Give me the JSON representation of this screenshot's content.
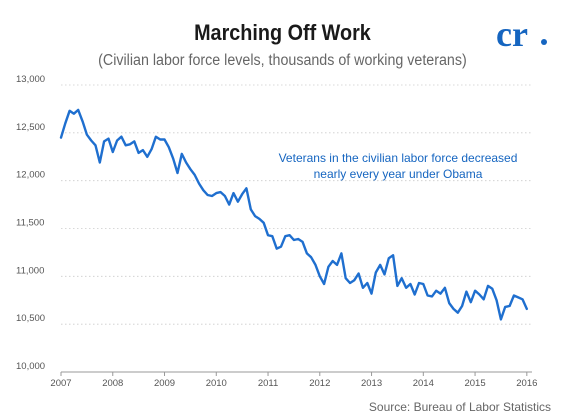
{
  "title": "Marching Off Work",
  "subtitle": "(Civilian labor force levels, thousands of working veterans)",
  "source": "Source: Bureau of Labor Statistics",
  "logo": {
    "text": "cr",
    "color": "#1565c0",
    "icon": "cr-logo"
  },
  "colors": {
    "line": "#1f6fcf",
    "annotation": "#1565c0",
    "grid": "#cccccc"
  },
  "chart_data": {
    "type": "line",
    "title": "Marching Off Work",
    "subtitle": "(Civilian labor force levels, thousands of working veterans)",
    "xlabel": "",
    "ylabel": "",
    "xlim": [
      2007,
      2016.1
    ],
    "ylim": [
      10000,
      13000
    ],
    "x_ticks": [
      2007,
      2008,
      2009,
      2010,
      2011,
      2012,
      2013,
      2014,
      2015,
      2016
    ],
    "y_ticks": [
      10000,
      10500,
      11000,
      11500,
      12000,
      12500,
      13000
    ],
    "y_tick_labels": [
      "10,000",
      "10,500",
      "11,000",
      "11,500",
      "12,000",
      "12,500",
      "13,000"
    ],
    "grid": "horizontal",
    "annotation": [
      "Veterans in the civilian labor force decreased",
      "nearly every year under Obama"
    ],
    "series": [
      {
        "x": [
          2007.0,
          2007.083,
          2007.167,
          2007.25,
          2007.333,
          2007.417,
          2007.5,
          2007.583,
          2007.667,
          2007.75,
          2007.833,
          2007.917,
          2008.0,
          2008.083,
          2008.167,
          2008.25,
          2008.333,
          2008.417,
          2008.5,
          2008.583,
          2008.667,
          2008.75,
          2008.833,
          2008.917,
          2009.0,
          2009.083,
          2009.167,
          2009.25,
          2009.333,
          2009.417,
          2009.5,
          2009.583,
          2009.667,
          2009.75,
          2009.833,
          2009.917,
          2010.0,
          2010.083,
          2010.167,
          2010.25,
          2010.333,
          2010.417,
          2010.5,
          2010.583,
          2010.667,
          2010.75,
          2010.833,
          2010.917,
          2011.0,
          2011.083,
          2011.167,
          2011.25,
          2011.333,
          2011.417,
          2011.5,
          2011.583,
          2011.667,
          2011.75,
          2011.833,
          2011.917,
          2012.0,
          2012.083,
          2012.167,
          2012.25,
          2012.333,
          2012.417,
          2012.5,
          2012.583,
          2012.667,
          2012.75,
          2012.833,
          2012.917,
          2013.0,
          2013.083,
          2013.167,
          2013.25,
          2013.333,
          2013.417,
          2013.5,
          2013.583,
          2013.667,
          2013.75,
          2013.833,
          2013.917,
          2014.0,
          2014.083,
          2014.167,
          2014.25,
          2014.333,
          2014.417,
          2014.5,
          2014.583,
          2014.667,
          2014.75,
          2014.833,
          2014.917,
          2015.0,
          2015.083,
          2015.167,
          2015.25,
          2015.333,
          2015.417,
          2015.5,
          2015.583,
          2015.667,
          2015.75,
          2015.833,
          2015.917,
          2016.0
        ],
        "y": [
          12450,
          12600,
          12730,
          12700,
          12740,
          12620,
          12480,
          12420,
          12370,
          12190,
          12410,
          12440,
          12300,
          12420,
          12460,
          12370,
          12380,
          12410,
          12290,
          12320,
          12250,
          12330,
          12460,
          12430,
          12430,
          12350,
          12230,
          12080,
          12280,
          12190,
          12120,
          12060,
          11970,
          11900,
          11850,
          11840,
          11870,
          11880,
          11840,
          11750,
          11870,
          11780,
          11860,
          11920,
          11700,
          11630,
          11600,
          11560,
          11430,
          11420,
          11290,
          11310,
          11420,
          11430,
          11380,
          11390,
          11360,
          11240,
          11200,
          11120,
          11000,
          10920,
          11100,
          11160,
          11120,
          11240,
          10980,
          10930,
          10960,
          11030,
          10880,
          10930,
          10820,
          11040,
          11120,
          11020,
          11190,
          11220,
          10900,
          10980,
          10880,
          10920,
          10810,
          10930,
          10920,
          10800,
          10790,
          10850,
          10820,
          10880,
          10720,
          10660,
          10620,
          10690,
          10840,
          10730,
          10850,
          10810,
          10760,
          10900,
          10870,
          10750,
          10550,
          10680,
          10690,
          10800,
          10780,
          10760,
          10660
        ]
      }
    ]
  }
}
